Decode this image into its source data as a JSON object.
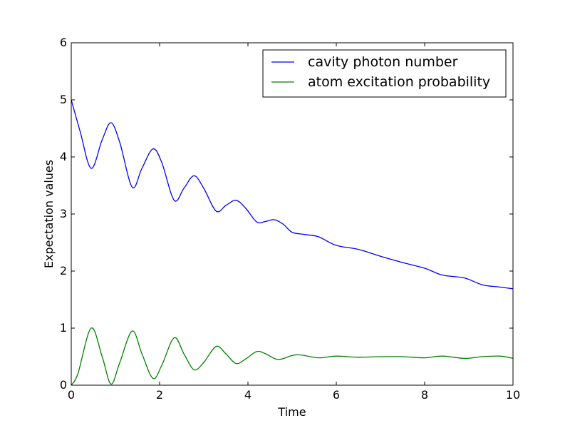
{
  "chart_data": {
    "type": "line",
    "title": "",
    "xlabel": "Time",
    "ylabel": "Expectation values",
    "xlim": [
      0,
      10
    ],
    "ylim": [
      0,
      6
    ],
    "xticks": [
      0,
      2,
      4,
      6,
      8,
      10
    ],
    "yticks": [
      0,
      1,
      2,
      3,
      4,
      5,
      6
    ],
    "grid": false,
    "legend_position": "top-right",
    "series": [
      {
        "name": "cavity photon number",
        "color": "#0000ff",
        "x": [
          0,
          0.2,
          0.45,
          0.7,
          0.9,
          1.1,
          1.38,
          1.6,
          1.85,
          2.05,
          2.33,
          2.55,
          2.78,
          3.0,
          3.28,
          3.5,
          3.73,
          3.95,
          4.2,
          4.4,
          4.6,
          4.8,
          5.0,
          5.3,
          5.6,
          6.0,
          6.5,
          7.0,
          7.5,
          8.0,
          8.4,
          8.9,
          9.3,
          9.7,
          10.0
        ],
        "y": [
          5.0,
          4.45,
          3.8,
          4.3,
          4.6,
          4.25,
          3.47,
          3.8,
          4.14,
          3.9,
          3.24,
          3.45,
          3.67,
          3.45,
          3.05,
          3.15,
          3.24,
          3.1,
          2.86,
          2.87,
          2.9,
          2.82,
          2.68,
          2.64,
          2.6,
          2.45,
          2.38,
          2.26,
          2.15,
          2.05,
          1.93,
          1.88,
          1.76,
          1.72,
          1.69
        ]
      },
      {
        "name": "atom excitation probability",
        "color": "#008000",
        "x": [
          0,
          0.15,
          0.45,
          0.7,
          0.9,
          1.1,
          1.38,
          1.6,
          1.85,
          2.05,
          2.33,
          2.55,
          2.78,
          3.0,
          3.28,
          3.5,
          3.73,
          3.95,
          4.2,
          4.4,
          4.68,
          5.0,
          5.2,
          5.6,
          6.0,
          6.5,
          7.0,
          7.5,
          8.0,
          8.4,
          8.9,
          9.3,
          9.7,
          10.0
        ],
        "y": [
          0,
          0.2,
          1.0,
          0.5,
          0.02,
          0.4,
          0.95,
          0.55,
          0.12,
          0.35,
          0.83,
          0.55,
          0.27,
          0.4,
          0.68,
          0.55,
          0.38,
          0.46,
          0.59,
          0.55,
          0.45,
          0.52,
          0.53,
          0.48,
          0.51,
          0.49,
          0.5,
          0.5,
          0.48,
          0.51,
          0.47,
          0.5,
          0.51,
          0.47
        ]
      }
    ]
  }
}
